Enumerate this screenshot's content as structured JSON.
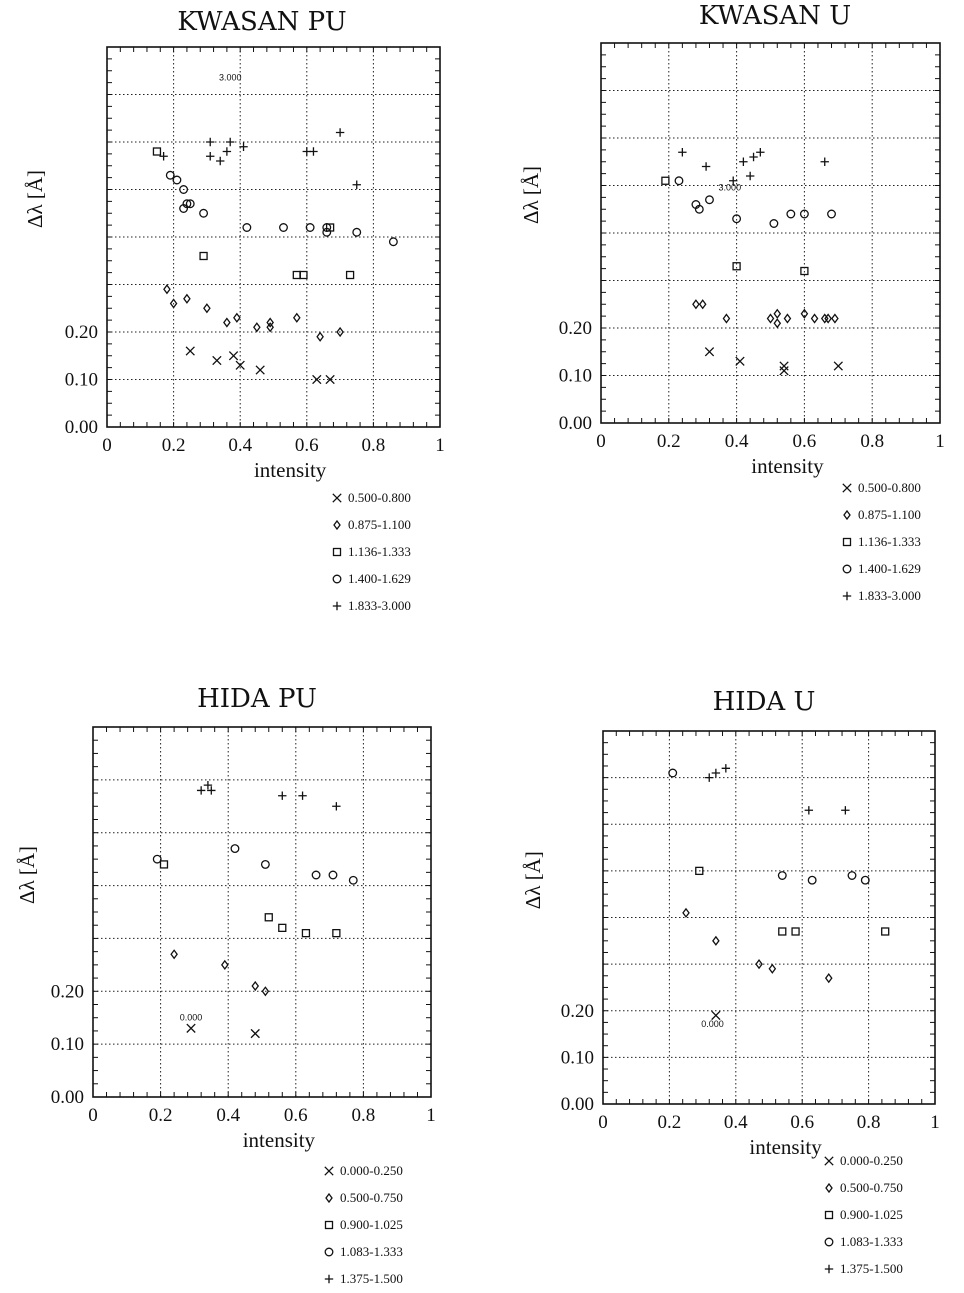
{
  "chart_data": [
    {
      "type": "scatter",
      "title": "KWASAN PU",
      "xlabel": "intensity",
      "ylabel": "Δλ [Å]",
      "xlim": [
        0,
        1
      ],
      "ylim": [
        0,
        0.8
      ],
      "x_ticks": [
        "0",
        "0.2",
        "0.4",
        "0.6",
        "0.8",
        "1"
      ],
      "y_ticks": [
        "0.00",
        "0.10",
        "0.20"
      ],
      "grid": true,
      "legend_position": "below-right",
      "annotations": [
        {
          "text": "3.000",
          "x": 0.37,
          "y": 0.73
        }
      ],
      "series": [
        {
          "name": "0.500-0.800",
          "marker": "x",
          "points": [
            [
              0.25,
              0.16
            ],
            [
              0.33,
              0.14
            ],
            [
              0.38,
              0.15
            ],
            [
              0.4,
              0.13
            ],
            [
              0.46,
              0.12
            ],
            [
              0.63,
              0.1
            ],
            [
              0.67,
              0.1
            ]
          ]
        },
        {
          "name": "0.875-1.100",
          "marker": "diamond",
          "points": [
            [
              0.18,
              0.29
            ],
            [
              0.2,
              0.26
            ],
            [
              0.24,
              0.27
            ],
            [
              0.3,
              0.25
            ],
            [
              0.36,
              0.22
            ],
            [
              0.39,
              0.23
            ],
            [
              0.45,
              0.21
            ],
            [
              0.49,
              0.21
            ],
            [
              0.49,
              0.22
            ],
            [
              0.57,
              0.23
            ],
            [
              0.64,
              0.19
            ],
            [
              0.7,
              0.2
            ]
          ]
        },
        {
          "name": "1.136-1.333",
          "marker": "square",
          "points": [
            [
              0.15,
              0.58
            ],
            [
              0.29,
              0.36
            ],
            [
              0.57,
              0.32
            ],
            [
              0.59,
              0.32
            ],
            [
              0.67,
              0.42
            ],
            [
              0.73,
              0.32
            ]
          ]
        },
        {
          "name": "1.400-1.629",
          "marker": "circle",
          "points": [
            [
              0.19,
              0.53
            ],
            [
              0.21,
              0.52
            ],
            [
              0.23,
              0.5
            ],
            [
              0.24,
              0.47
            ],
            [
              0.23,
              0.46
            ],
            [
              0.25,
              0.47
            ],
            [
              0.29,
              0.45
            ],
            [
              0.42,
              0.42
            ],
            [
              0.53,
              0.42
            ],
            [
              0.61,
              0.42
            ],
            [
              0.66,
              0.42
            ],
            [
              0.66,
              0.41
            ],
            [
              0.75,
              0.41
            ],
            [
              0.86,
              0.39
            ]
          ]
        },
        {
          "name": "1.833-3.000",
          "marker": "plus",
          "points": [
            [
              0.17,
              0.57
            ],
            [
              0.31,
              0.6
            ],
            [
              0.31,
              0.57
            ],
            [
              0.34,
              0.56
            ],
            [
              0.36,
              0.58
            ],
            [
              0.37,
              0.6
            ],
            [
              0.41,
              0.59
            ],
            [
              0.6,
              0.58
            ],
            [
              0.62,
              0.58
            ],
            [
              0.7,
              0.62
            ],
            [
              0.75,
              0.51
            ]
          ]
        }
      ]
    },
    {
      "type": "scatter",
      "title": "KWASAN U",
      "xlabel": "intensity",
      "ylabel": "Δλ [Å]",
      "xlim": [
        0,
        1
      ],
      "ylim": [
        0,
        0.8
      ],
      "x_ticks": [
        "0",
        "0.2",
        "0.4",
        "0.6",
        "0.8",
        "1"
      ],
      "y_ticks": [
        "0.00",
        "0.10",
        "0.20"
      ],
      "grid": true,
      "legend_position": "below-right",
      "annotations": [
        {
          "text": "3.000",
          "x": 0.38,
          "y": 0.49
        }
      ],
      "series": [
        {
          "name": "0.500-0.800",
          "marker": "x",
          "points": [
            [
              0.32,
              0.15
            ],
            [
              0.41,
              0.13
            ],
            [
              0.54,
              0.12
            ],
            [
              0.54,
              0.11
            ],
            [
              0.7,
              0.12
            ]
          ]
        },
        {
          "name": "0.875-1.100",
          "marker": "diamond",
          "points": [
            [
              0.28,
              0.25
            ],
            [
              0.3,
              0.25
            ],
            [
              0.37,
              0.22
            ],
            [
              0.5,
              0.22
            ],
            [
              0.52,
              0.23
            ],
            [
              0.52,
              0.21
            ],
            [
              0.55,
              0.22
            ],
            [
              0.6,
              0.23
            ],
            [
              0.63,
              0.22
            ],
            [
              0.66,
              0.22
            ],
            [
              0.67,
              0.22
            ],
            [
              0.69,
              0.22
            ]
          ]
        },
        {
          "name": "1.136-1.333",
          "marker": "square",
          "points": [
            [
              0.19,
              0.51
            ],
            [
              0.4,
              0.33
            ],
            [
              0.6,
              0.32
            ]
          ]
        },
        {
          "name": "1.400-1.629",
          "marker": "circle",
          "points": [
            [
              0.23,
              0.51
            ],
            [
              0.28,
              0.46
            ],
            [
              0.29,
              0.45
            ],
            [
              0.32,
              0.47
            ],
            [
              0.4,
              0.43
            ],
            [
              0.51,
              0.42
            ],
            [
              0.56,
              0.44
            ],
            [
              0.6,
              0.44
            ],
            [
              0.68,
              0.44
            ]
          ]
        },
        {
          "name": "1.833-3.000",
          "marker": "plus",
          "points": [
            [
              0.24,
              0.57
            ],
            [
              0.31,
              0.54
            ],
            [
              0.39,
              0.51
            ],
            [
              0.42,
              0.55
            ],
            [
              0.44,
              0.52
            ],
            [
              0.45,
              0.56
            ],
            [
              0.47,
              0.57
            ],
            [
              0.66,
              0.55
            ]
          ]
        }
      ]
    },
    {
      "type": "scatter",
      "title": "HIDA PU",
      "xlabel": "intensity",
      "ylabel": "Δλ [Å]",
      "xlim": [
        0,
        1
      ],
      "ylim": [
        0,
        0.7
      ],
      "x_ticks": [
        "0",
        "0.2",
        "0.4",
        "0.6",
        "0.8",
        "1"
      ],
      "y_ticks": [
        "0.00",
        "0.10",
        "0.20"
      ],
      "grid": true,
      "legend_position": "below-right",
      "annotations": [
        {
          "text": "0.000",
          "x": 0.29,
          "y": 0.145
        }
      ],
      "series": [
        {
          "name": "0.000-0.250",
          "marker": "x",
          "points": [
            [
              0.29,
              0.13
            ],
            [
              0.48,
              0.12
            ]
          ]
        },
        {
          "name": "0.500-0.750",
          "marker": "diamond",
          "points": [
            [
              0.24,
              0.27
            ],
            [
              0.39,
              0.25
            ],
            [
              0.48,
              0.21
            ],
            [
              0.51,
              0.2
            ]
          ]
        },
        {
          "name": "0.900-1.025",
          "marker": "square",
          "points": [
            [
              0.21,
              0.44
            ],
            [
              0.52,
              0.34
            ],
            [
              0.56,
              0.32
            ],
            [
              0.63,
              0.31
            ],
            [
              0.72,
              0.31
            ]
          ]
        },
        {
          "name": "1.083-1.333",
          "marker": "circle",
          "points": [
            [
              0.19,
              0.45
            ],
            [
              0.42,
              0.47
            ],
            [
              0.51,
              0.44
            ],
            [
              0.66,
              0.42
            ],
            [
              0.71,
              0.42
            ],
            [
              0.77,
              0.41
            ]
          ]
        },
        {
          "name": "1.375-1.500",
          "marker": "plus",
          "points": [
            [
              0.32,
              0.58
            ],
            [
              0.34,
              0.59
            ],
            [
              0.35,
              0.58
            ],
            [
              0.56,
              0.57
            ],
            [
              0.62,
              0.57
            ],
            [
              0.72,
              0.55
            ]
          ]
        }
      ]
    },
    {
      "type": "scatter",
      "title": "HIDA U",
      "xlabel": "intensity",
      "ylabel": "Δλ [Å]",
      "xlim": [
        0,
        1
      ],
      "ylim": [
        0,
        0.8
      ],
      "x_ticks": [
        "0",
        "0.2",
        "0.4",
        "0.6",
        "0.8",
        "1"
      ],
      "y_ticks": [
        "0.00",
        "0.10",
        "0.20"
      ],
      "grid": true,
      "legend_position": "below-right",
      "annotations": [
        {
          "text": "0.000",
          "x": 0.33,
          "y": 0.165
        }
      ],
      "series": [
        {
          "name": "0.000-0.250",
          "marker": "x",
          "points": [
            [
              0.34,
              0.19
            ]
          ]
        },
        {
          "name": "0.500-0.750",
          "marker": "diamond",
          "points": [
            [
              0.25,
              0.41
            ],
            [
              0.34,
              0.35
            ],
            [
              0.47,
              0.3
            ],
            [
              0.51,
              0.29
            ],
            [
              0.68,
              0.27
            ]
          ]
        },
        {
          "name": "0.900-1.025",
          "marker": "square",
          "points": [
            [
              0.29,
              0.5
            ],
            [
              0.54,
              0.37
            ],
            [
              0.58,
              0.37
            ],
            [
              0.85,
              0.37
            ]
          ]
        },
        {
          "name": "1.083-1.333",
          "marker": "circle",
          "points": [
            [
              0.21,
              0.71
            ],
            [
              0.54,
              0.49
            ],
            [
              0.63,
              0.48
            ],
            [
              0.75,
              0.49
            ],
            [
              0.79,
              0.48
            ]
          ]
        },
        {
          "name": "1.375-1.500",
          "marker": "plus",
          "points": [
            [
              0.32,
              0.7
            ],
            [
              0.34,
              0.71
            ],
            [
              0.37,
              0.72
            ],
            [
              0.62,
              0.63
            ],
            [
              0.73,
              0.63
            ]
          ]
        }
      ]
    }
  ]
}
